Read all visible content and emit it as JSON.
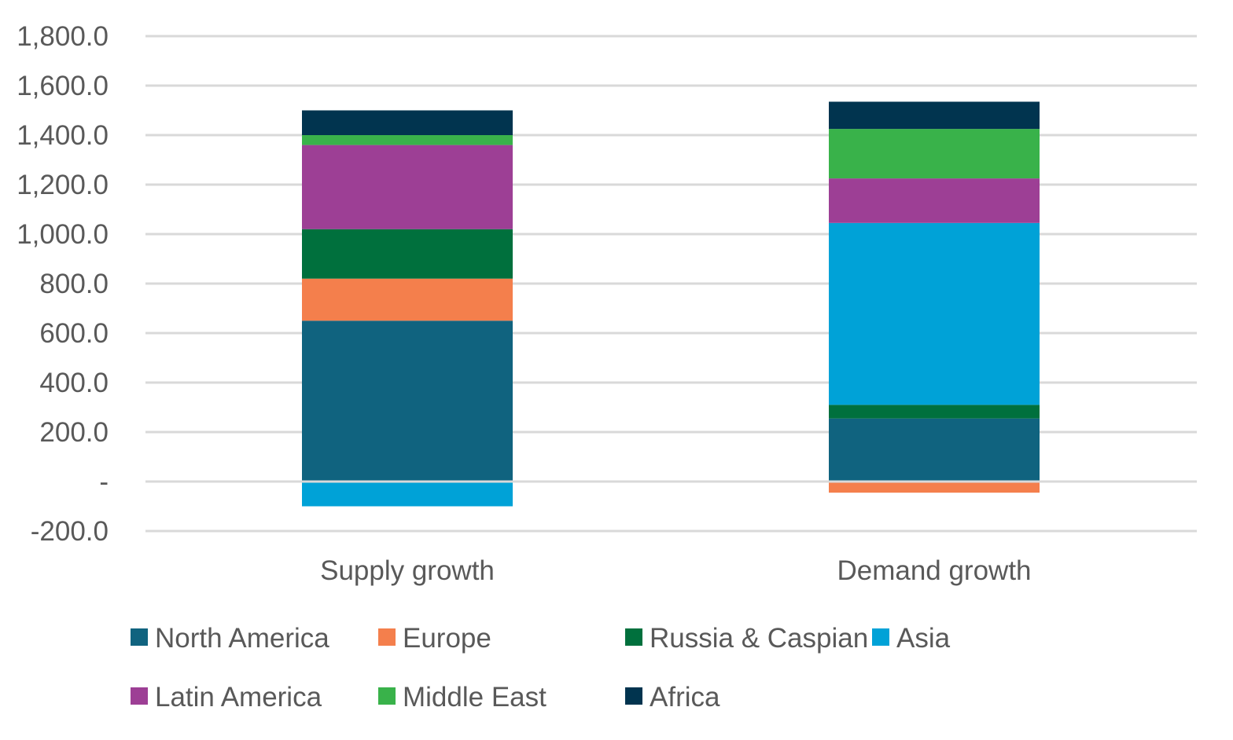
{
  "chart_data": {
    "type": "bar",
    "stacked": true,
    "title": "",
    "xlabel": "",
    "ylabel": "",
    "ylim": [
      -200,
      1800
    ],
    "yticks": [
      -200,
      0,
      200,
      400,
      600,
      800,
      1000,
      1200,
      1400,
      1600,
      1800
    ],
    "ytick_labels": [
      "-200.0",
      "-",
      "200.0",
      "400.0",
      "600.0",
      "800.0",
      "1,000.0",
      "1,200.0",
      "1,400.0",
      "1,600.0",
      "1,800.0"
    ],
    "grid": true,
    "legend_position": "bottom",
    "categories": [
      "Supply growth",
      "Demand growth"
    ],
    "series": [
      {
        "name": "North America",
        "color": "#10637f",
        "values": [
          650,
          255
        ]
      },
      {
        "name": "Europe",
        "color": "#f47f4c",
        "values": [
          170,
          -45
        ]
      },
      {
        "name": "Russia & Caspian",
        "color": "#00703d",
        "values": [
          200,
          55
        ]
      },
      {
        "name": "Asia",
        "color": "#00a2d7",
        "values": [
          -100,
          735
        ]
      },
      {
        "name": "Latin America",
        "color": "#9d3f95",
        "values": [
          340,
          180
        ]
      },
      {
        "name": "Middle East",
        "color": "#39b24a",
        "values": [
          40,
          200
        ]
      },
      {
        "name": "Africa",
        "color": "#01344f",
        "values": [
          100,
          110
        ]
      }
    ]
  }
}
